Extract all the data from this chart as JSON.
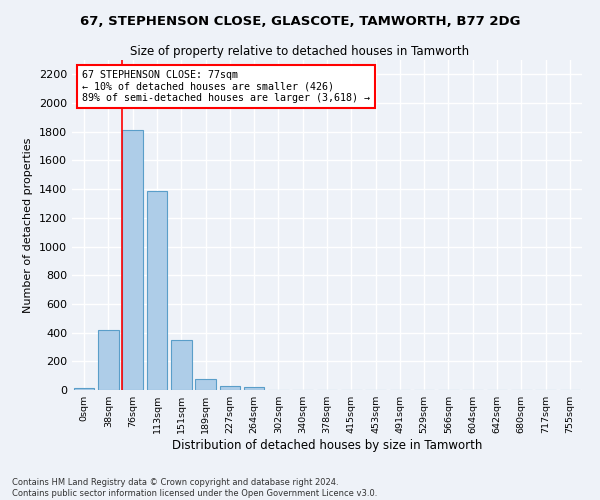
{
  "title": "67, STEPHENSON CLOSE, GLASCOTE, TAMWORTH, B77 2DG",
  "subtitle": "Size of property relative to detached houses in Tamworth",
  "xlabel": "Distribution of detached houses by size in Tamworth",
  "ylabel": "Number of detached properties",
  "bar_color": "#aecde8",
  "bar_edge_color": "#5a9ec9",
  "categories": [
    "0sqm",
    "38sqm",
    "76sqm",
    "113sqm",
    "151sqm",
    "189sqm",
    "227sqm",
    "264sqm",
    "302sqm",
    "340sqm",
    "378sqm",
    "415sqm",
    "453sqm",
    "491sqm",
    "529sqm",
    "566sqm",
    "604sqm",
    "642sqm",
    "680sqm",
    "717sqm",
    "755sqm"
  ],
  "values": [
    15,
    420,
    1810,
    1390,
    350,
    80,
    28,
    22,
    0,
    0,
    0,
    0,
    0,
    0,
    0,
    0,
    0,
    0,
    0,
    0,
    0
  ],
  "ylim": [
    0,
    2300
  ],
  "yticks": [
    0,
    200,
    400,
    600,
    800,
    1000,
    1200,
    1400,
    1600,
    1800,
    2000,
    2200
  ],
  "property_line_label": "67 STEPHENSON CLOSE: 77sqm",
  "annotation_line1": "← 10% of detached houses are smaller (426)",
  "annotation_line2": "89% of semi-detached houses are larger (3,618) →",
  "footer1": "Contains HM Land Registry data © Crown copyright and database right 2024.",
  "footer2": "Contains public sector information licensed under the Open Government Licence v3.0.",
  "background_color": "#eef2f8",
  "grid_color": "#ffffff"
}
